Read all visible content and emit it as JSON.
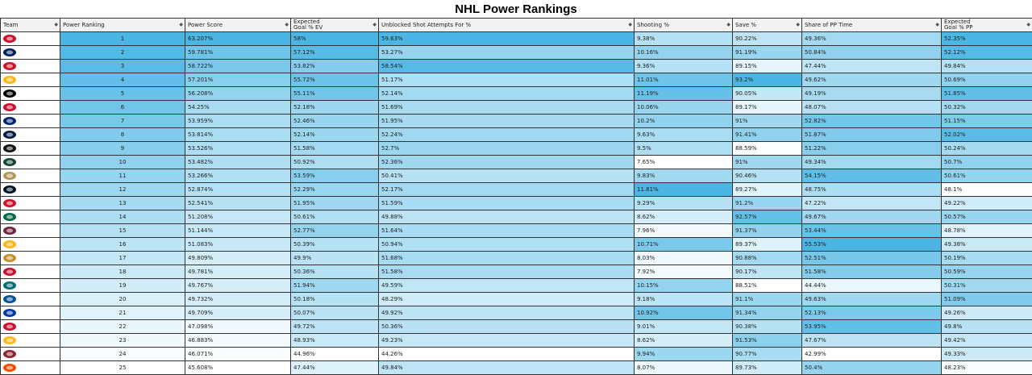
{
  "title": "NHL Power Rankings",
  "columns": [
    {
      "label": "Team"
    },
    {
      "label": "Power Ranking"
    },
    {
      "label": "Power Score"
    },
    {
      "label": "Expected\nGoal % EV"
    },
    {
      "label": "Unblocked Shot Attempts For %"
    },
    {
      "label": "Shooting %"
    },
    {
      "label": "Save %"
    },
    {
      "label": "Share of PP Time"
    },
    {
      "label": "Expected\nGoal % PP"
    }
  ],
  "logo_colors": [
    "#c8102e",
    "#00205b",
    "#ce1126",
    "#fcb514",
    "#000000",
    "#c8102e",
    "#002868",
    "#041e42",
    "#111111",
    "#154734",
    "#b4975a",
    "#001628",
    "#ce1126",
    "#006847",
    "#6f263d",
    "#fcb514",
    "#c2912c",
    "#c8102e",
    "#006d75",
    "#00539b",
    "#0038a8",
    "#c8102e",
    "#ffb81c",
    "#8c2633",
    "#f74902"
  ],
  "rows": [
    {
      "team_icon": "hurricanes-logo-icon",
      "rank": "1",
      "score": "63.207%",
      "xg_ev": "58%",
      "usa": "59.63%",
      "sh": "9.38%",
      "sv": "90.22%",
      "pp_time": "49.36%",
      "xg_pp": "52.35%"
    },
    {
      "team_icon": "maple-leafs-logo-icon",
      "rank": "2",
      "score": "59.781%",
      "xg_ev": "57.12%",
      "usa": "53.27%",
      "sh": "10.16%",
      "sv": "91.19%",
      "pp_time": "50.84%",
      "xg_pp": "52.12%"
    },
    {
      "team_icon": "flames-logo-icon",
      "rank": "3",
      "score": "58.722%",
      "xg_ev": "53.82%",
      "usa": "58.54%",
      "sh": "9.36%",
      "sv": "89.15%",
      "pp_time": "47.44%",
      "xg_pp": "49.84%"
    },
    {
      "team_icon": "bruins-logo-icon",
      "rank": "4",
      "score": "57.201%",
      "xg_ev": "55.72%",
      "usa": "51.17%",
      "sh": "11.01%",
      "sv": "93.2%",
      "pp_time": "49.62%",
      "xg_pp": "50.69%"
    },
    {
      "team_icon": "oilers-logo-icon",
      "rank": "5",
      "score": "56.208%",
      "xg_ev": "55.11%",
      "usa": "52.14%",
      "sh": "11.19%",
      "sv": "90.05%",
      "pp_time": "49.19%",
      "xg_pp": "51.85%"
    },
    {
      "team_icon": "panthers-logo-icon",
      "rank": "6",
      "score": "54.25%",
      "xg_ev": "52.18%",
      "usa": "51.69%",
      "sh": "10.06%",
      "sv": "89.17%",
      "pp_time": "48.07%",
      "xg_pp": "50.32%"
    },
    {
      "team_icon": "lightning-logo-icon",
      "rank": "7",
      "score": "53.959%",
      "xg_ev": "52.46%",
      "usa": "51.95%",
      "sh": "10.2%",
      "sv": "91%",
      "pp_time": "52.82%",
      "xg_pp": "51.15%"
    },
    {
      "team_icon": "jets-logo-icon",
      "rank": "8",
      "score": "53.814%",
      "xg_ev": "52.14%",
      "usa": "52.24%",
      "sh": "9.63%",
      "sv": "91.41%",
      "pp_time": "51.87%",
      "xg_pp": "52.02%"
    },
    {
      "team_icon": "kings-logo-icon",
      "rank": "9",
      "score": "53.526%",
      "xg_ev": "51.58%",
      "usa": "52.7%",
      "sh": "9.5%",
      "sv": "88.59%",
      "pp_time": "51.22%",
      "xg_pp": "50.24%"
    },
    {
      "team_icon": "wild-logo-icon",
      "rank": "10",
      "score": "53.482%",
      "xg_ev": "50.92%",
      "usa": "52.36%",
      "sh": "7.65%",
      "sv": "91%",
      "pp_time": "49.34%",
      "xg_pp": "50.7%"
    },
    {
      "team_icon": "golden-knights-logo-icon",
      "rank": "11",
      "score": "53.266%",
      "xg_ev": "53.59%",
      "usa": "50.41%",
      "sh": "9.83%",
      "sv": "90.46%",
      "pp_time": "54.15%",
      "xg_pp": "50.61%"
    },
    {
      "team_icon": "kraken-logo-icon",
      "rank": "12",
      "score": "52.874%",
      "xg_ev": "52.29%",
      "usa": "52.17%",
      "sh": "11.81%",
      "sv": "89.27%",
      "pp_time": "48.75%",
      "xg_pp": "48.1%"
    },
    {
      "team_icon": "devils-logo-icon",
      "rank": "13",
      "score": "52.541%",
      "xg_ev": "51.95%",
      "usa": "51.59%",
      "sh": "9.29%",
      "sv": "91.2%",
      "pp_time": "47.22%",
      "xg_pp": "49.22%"
    },
    {
      "team_icon": "stars-logo-icon",
      "rank": "14",
      "score": "51.208%",
      "xg_ev": "50.61%",
      "usa": "49.88%",
      "sh": "8.62%",
      "sv": "92.57%",
      "pp_time": "49.67%",
      "xg_pp": "50.57%"
    },
    {
      "team_icon": "avalanche-logo-icon",
      "rank": "15",
      "score": "51.144%",
      "xg_ev": "52.77%",
      "usa": "51.64%",
      "sh": "7.96%",
      "sv": "91.37%",
      "pp_time": "53.44%",
      "xg_pp": "48.78%"
    },
    {
      "team_icon": "penguins-logo-icon",
      "rank": "16",
      "score": "51.083%",
      "xg_ev": "50.39%",
      "usa": "50.94%",
      "sh": "10.71%",
      "sv": "89.37%",
      "pp_time": "55.53%",
      "xg_pp": "49.38%"
    },
    {
      "team_icon": "sabres-logo-icon",
      "rank": "17",
      "score": "49.809%",
      "xg_ev": "49.9%",
      "usa": "51.68%",
      "sh": "8.03%",
      "sv": "90.88%",
      "pp_time": "52.51%",
      "xg_pp": "50.19%"
    },
    {
      "team_icon": "senators-logo-icon",
      "rank": "18",
      "score": "49.781%",
      "xg_ev": "50.36%",
      "usa": "51.58%",
      "sh": "7.92%",
      "sv": "90.17%",
      "pp_time": "51.58%",
      "xg_pp": "50.59%"
    },
    {
      "team_icon": "sharks-logo-icon",
      "rank": "19",
      "score": "49.767%",
      "xg_ev": "51.94%",
      "usa": "49.59%",
      "sh": "10.15%",
      "sv": "88.51%",
      "pp_time": "44.44%",
      "xg_pp": "50.31%"
    },
    {
      "team_icon": "islanders-logo-icon",
      "rank": "20",
      "score": "49.732%",
      "xg_ev": "50.18%",
      "usa": "48.29%",
      "sh": "9.18%",
      "sv": "91.1%",
      "pp_time": "49.63%",
      "xg_pp": "51.09%"
    },
    {
      "team_icon": "rangers-logo-icon",
      "rank": "21",
      "score": "49.709%",
      "xg_ev": "50.07%",
      "usa": "49.92%",
      "sh": "10.92%",
      "sv": "91.34%",
      "pp_time": "52.13%",
      "xg_pp": "49.26%"
    },
    {
      "team_icon": "capitals-logo-icon",
      "rank": "22",
      "score": "47.098%",
      "xg_ev": "49.72%",
      "usa": "50.36%",
      "sh": "9.01%",
      "sv": "90.38%",
      "pp_time": "53.95%",
      "xg_pp": "49.8%"
    },
    {
      "team_icon": "predators-logo-icon",
      "rank": "23",
      "score": "46.883%",
      "xg_ev": "48.93%",
      "usa": "49.23%",
      "sh": "8.62%",
      "sv": "91.53%",
      "pp_time": "47.67%",
      "xg_pp": "49.42%"
    },
    {
      "team_icon": "coyotes-logo-icon",
      "rank": "24",
      "score": "46.071%",
      "xg_ev": "44.96%",
      "usa": "44.26%",
      "sh": "9.94%",
      "sv": "90.77%",
      "pp_time": "42.99%",
      "xg_pp": "49.33%"
    },
    {
      "team_icon": "flyers-logo-icon",
      "rank": "25",
      "score": "45.608%",
      "xg_ev": "47.44%",
      "usa": "49.84%",
      "sh": "8.07%",
      "sv": "89.73%",
      "pp_time": "50.4%",
      "xg_pp": "48.23%"
    }
  ]
}
